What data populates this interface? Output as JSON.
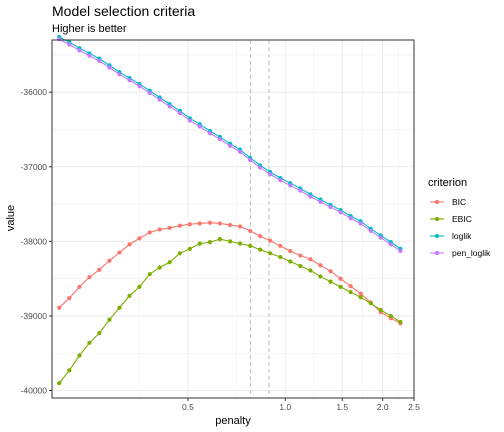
{
  "chart_data": {
    "type": "line",
    "title": "Model selection criteria",
    "subtitle": "Higher is better",
    "xlabel": "penalty",
    "ylabel": "value",
    "x_scale": "log",
    "xlim": [
      0.19,
      2.5
    ],
    "ylim": [
      -40100,
      -35300
    ],
    "x_ticks": [
      0.5,
      1.0,
      1.5,
      2.0,
      2.5
    ],
    "x_tick_labels": [
      "0.5",
      "1.0",
      "1.5",
      "2.0",
      "2.5"
    ],
    "y_ticks": [
      -40000,
      -39000,
      -38000,
      -37000,
      -36000
    ],
    "y_tick_labels": [
      "-40000",
      "-39000",
      "-38000",
      "-37000",
      "-36000"
    ],
    "vlines": [
      0.78,
      0.89
    ],
    "grid": true,
    "legend_title": "criterion",
    "legend_position": "right",
    "x": [
      0.2,
      0.215,
      0.231,
      0.248,
      0.266,
      0.286,
      0.307,
      0.33,
      0.354,
      0.381,
      0.409,
      0.439,
      0.472,
      0.507,
      0.544,
      0.585,
      0.628,
      0.675,
      0.725,
      0.779,
      0.836,
      0.898,
      0.965,
      1.036,
      1.113,
      1.196,
      1.284,
      1.38,
      1.482,
      1.592,
      1.71,
      1.837,
      1.973,
      2.12,
      2.27
    ],
    "series": [
      {
        "name": "BIC",
        "color": "#F8766D",
        "values": [
          -38890,
          -38760,
          -38610,
          -38480,
          -38380,
          -38260,
          -38150,
          -38040,
          -37960,
          -37880,
          -37840,
          -37820,
          -37790,
          -37770,
          -37760,
          -37750,
          -37760,
          -37780,
          -37800,
          -37860,
          -37930,
          -37990,
          -38060,
          -38130,
          -38190,
          -38240,
          -38320,
          -38400,
          -38500,
          -38600,
          -38700,
          -38820,
          -38950,
          -39030,
          -39100
        ]
      },
      {
        "name": "EBIC",
        "color": "#7CAE00",
        "values": [
          -39900,
          -39730,
          -39530,
          -39360,
          -39230,
          -39050,
          -38890,
          -38730,
          -38610,
          -38440,
          -38350,
          -38280,
          -38160,
          -38100,
          -38030,
          -38010,
          -37970,
          -38000,
          -38030,
          -38060,
          -38110,
          -38160,
          -38210,
          -38270,
          -38330,
          -38390,
          -38470,
          -38540,
          -38610,
          -38680,
          -38750,
          -38830,
          -38920,
          -39000,
          -39080
        ]
      },
      {
        "name": "loglik",
        "color": "#00BFC4",
        "values": [
          -35260,
          -35330,
          -35410,
          -35480,
          -35550,
          -35640,
          -35730,
          -35810,
          -35890,
          -35980,
          -36070,
          -36160,
          -36250,
          -36350,
          -36430,
          -36520,
          -36600,
          -36690,
          -36770,
          -36880,
          -36980,
          -37070,
          -37150,
          -37220,
          -37290,
          -37370,
          -37440,
          -37510,
          -37580,
          -37660,
          -37730,
          -37830,
          -37920,
          -38010,
          -38100
        ]
      },
      {
        "name": "pen_loglik",
        "color": "#C77CFF",
        "values": [
          -35290,
          -35360,
          -35440,
          -35510,
          -35580,
          -35670,
          -35760,
          -35840,
          -35920,
          -36010,
          -36100,
          -36190,
          -36280,
          -36380,
          -36460,
          -36550,
          -36630,
          -36720,
          -36800,
          -36910,
          -37010,
          -37100,
          -37180,
          -37250,
          -37320,
          -37400,
          -37470,
          -37540,
          -37610,
          -37690,
          -37760,
          -37860,
          -37950,
          -38040,
          -38130
        ]
      }
    ]
  }
}
